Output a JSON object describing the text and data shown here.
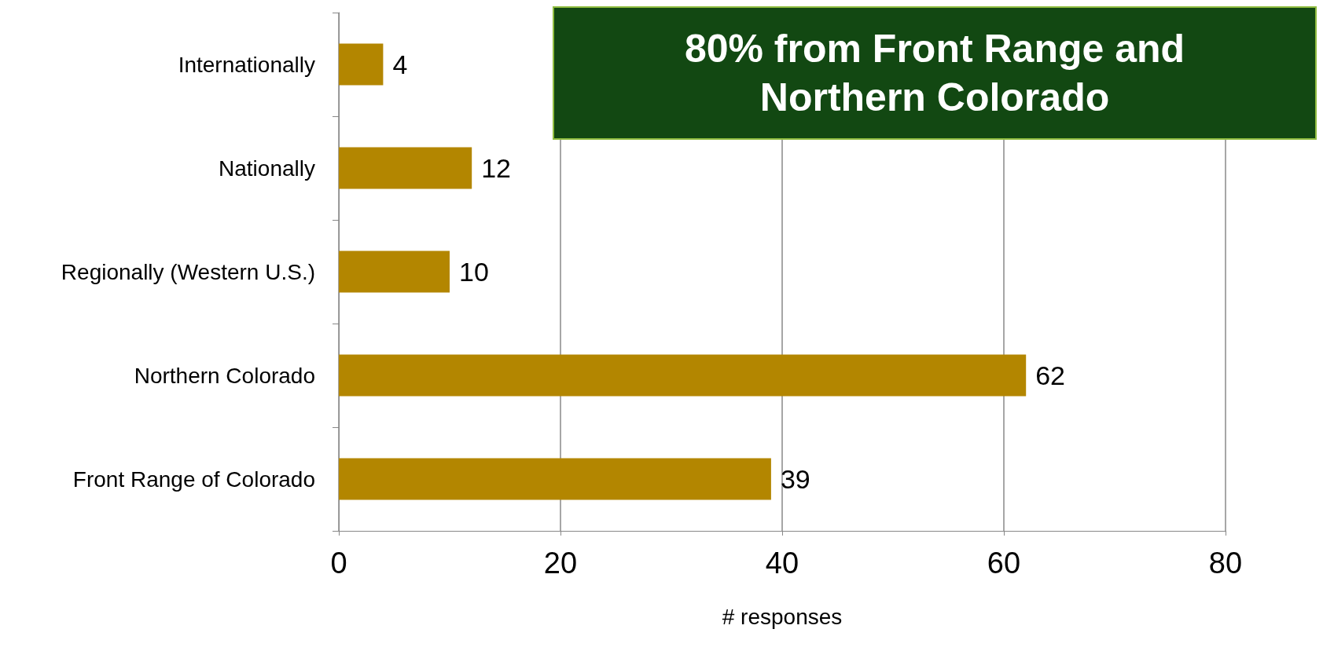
{
  "chart_data": {
    "type": "bar",
    "orientation": "horizontal",
    "categories": [
      "Internationally",
      "Nationally",
      "Regionally (Western U.S.)",
      "Northern Colorado",
      "Front Range of Colorado"
    ],
    "values": [
      4,
      12,
      10,
      62,
      39
    ],
    "color": "#b38600",
    "xlim": [
      0,
      80
    ],
    "xticks": [
      0,
      20,
      40,
      60,
      80
    ],
    "xlabel": "# responses",
    "grid": "x",
    "data_labels": true,
    "annotations": [
      "80% from Front Range and Northern Colorado"
    ]
  }
}
